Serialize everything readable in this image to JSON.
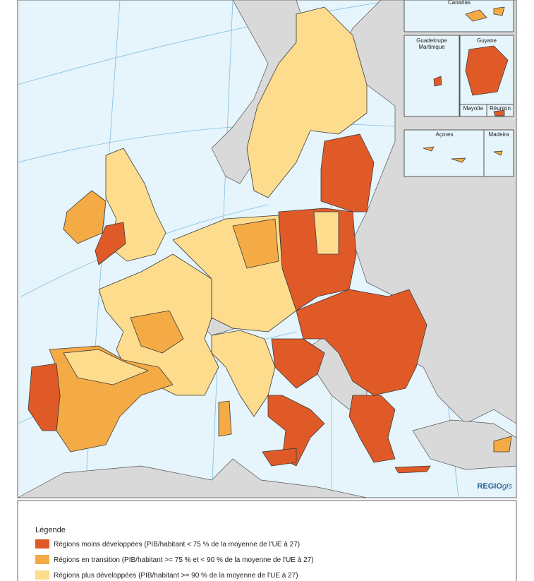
{
  "map": {
    "insets": [
      "Canarias",
      "Guadeloupe\nMartinique",
      "Guyane",
      "Mayotte",
      "Réunion",
      "Açores",
      "Madeira"
    ],
    "credit": {
      "main": "REGIO",
      "italic": "gis"
    }
  },
  "legend": {
    "title": "Légende",
    "items": [
      {
        "label": "Régions moins développées (PIB/habitant < 75 % de la moyenne de l'UE à 27)",
        "color": "#e05a28"
      },
      {
        "label": "Régions en transition (PIB/habitant >= 75 % et < 90 % de la moyenne de l'UE à 27)",
        "color": "#f4aa45"
      },
      {
        "label": "Régions plus développées (PIB/habitant >= 90 % de la moyenne de l'UE à 27)",
        "color": "#fddc8e"
      }
    ]
  }
}
